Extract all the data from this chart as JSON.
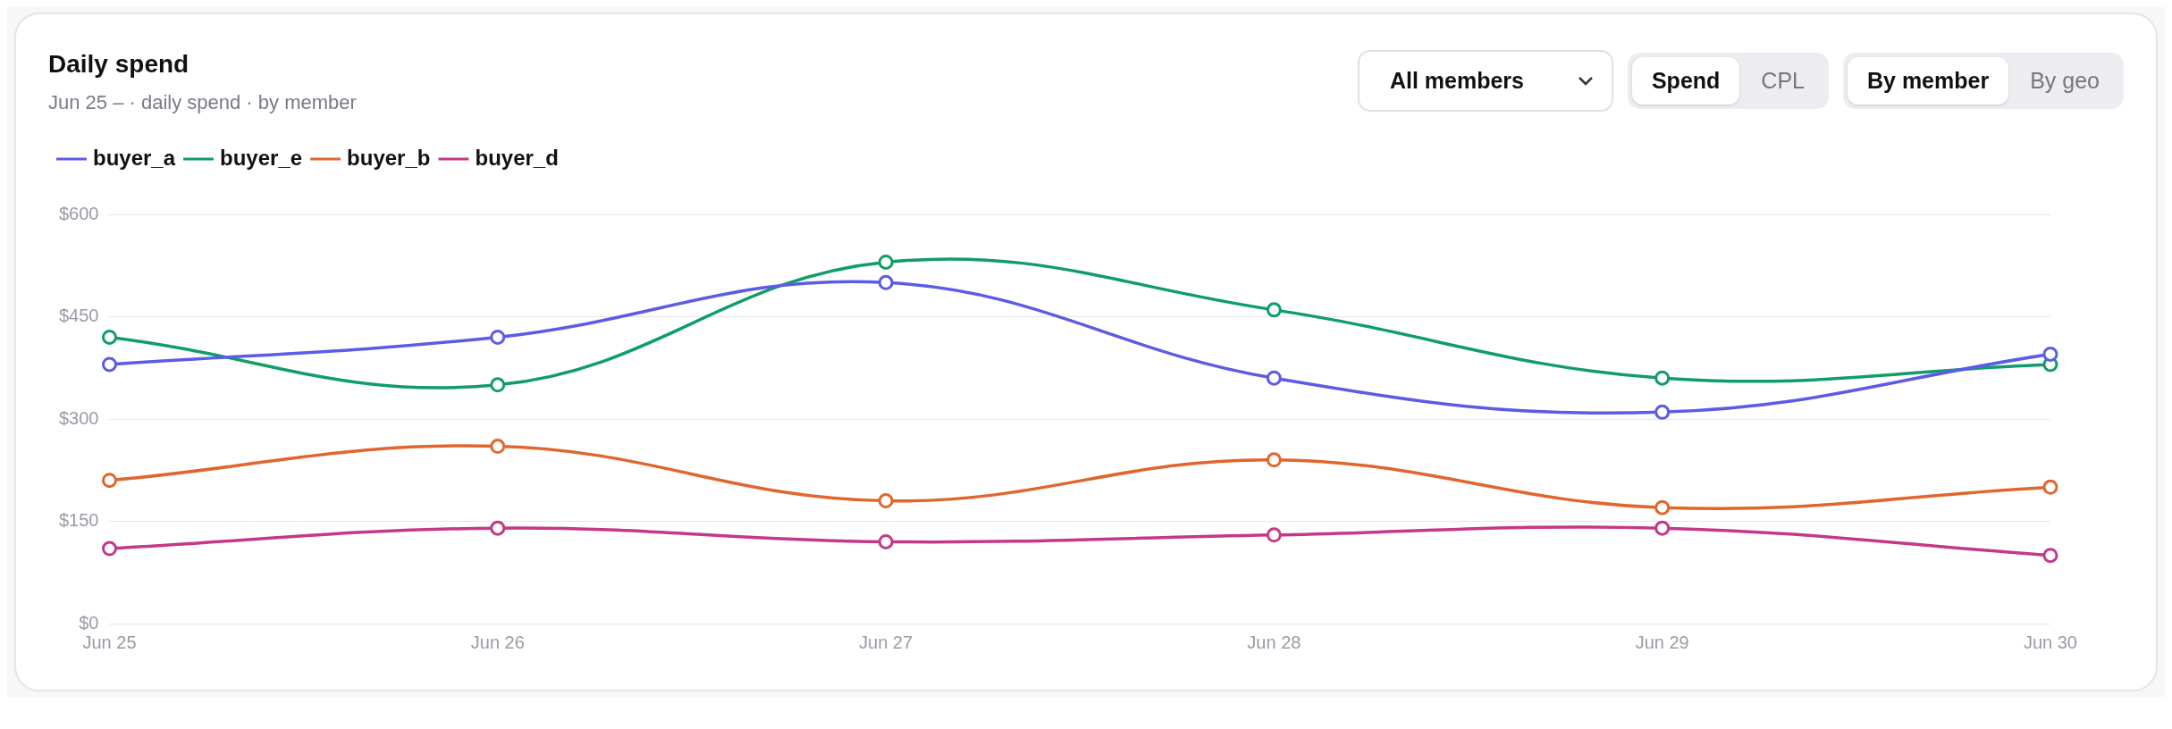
{
  "chart_data": {
    "type": "line",
    "title": "Daily spend",
    "subtitle": "Jun 25 – · daily spend · by member",
    "annotations": [
      "All members",
      "Spend",
      "CPL",
      "By member",
      "By geo"
    ],
    "categories": [
      "Jun 25",
      "Jun 26",
      "Jun 27",
      "Jun 28",
      "Jun 29",
      "Jun 30"
    ],
    "series": [
      {
        "name": "buyer_a",
        "color": "#5b5ce6",
        "values": [
          380,
          420,
          500,
          360,
          310,
          395
        ]
      },
      {
        "name": "buyer_e",
        "color": "#109d68",
        "values": [
          420,
          350,
          530,
          460,
          360,
          380
        ]
      },
      {
        "name": "buyer_b",
        "color": "#e0662e",
        "values": [
          210,
          260,
          180,
          240,
          170,
          200
        ]
      },
      {
        "name": "buyer_d",
        "color": "#c4388a",
        "values": [
          110,
          140,
          120,
          130,
          140,
          100
        ]
      }
    ],
    "ylim": [
      0,
      600
    ],
    "yticks": [
      {
        "value": 0,
        "label": "$0"
      },
      {
        "value": 150,
        "label": "$150"
      },
      {
        "value": 300,
        "label": "$300"
      },
      {
        "value": 450,
        "label": "$450"
      },
      {
        "value": 600,
        "label": "$600"
      }
    ],
    "grid": "y",
    "legend": "top left",
    "marker": "circle",
    "line_style": "solid"
  }
}
